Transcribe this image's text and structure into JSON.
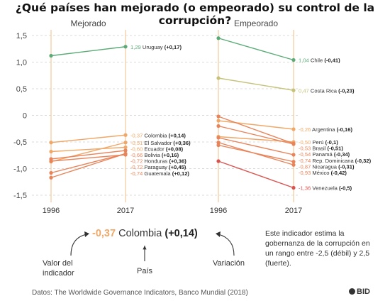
{
  "title": "¿Qué países han mejorado (o empeorado) su control de la corrupción?",
  "chart_data": {
    "type": "line",
    "x": [
      "1996",
      "2017"
    ],
    "ylim": [
      -1.5,
      1.5
    ],
    "yticks": [
      "1,5",
      "1,0",
      "0,5",
      "0",
      "-0,5",
      "-1,0",
      "-1,5"
    ],
    "grid": false,
    "panels": [
      {
        "title": "Mejorado",
        "series": [
          {
            "name": "Uruguay",
            "values": [
              1.12,
              1.29
            ],
            "label_value": "1,29",
            "label_change": "(+0,17)",
            "color": "#5aab77"
          },
          {
            "name": "Colombia",
            "values": [
              -0.51,
              -0.37
            ],
            "label_value": "-0,37",
            "label_change": "(+0,14)",
            "color": "#f0a868"
          },
          {
            "name": "El Salvador",
            "values": [
              -0.87,
              -0.51
            ],
            "label_value": "-0,51",
            "label_change": "(+0,36)",
            "color": "#f0a868"
          },
          {
            "name": "Ecuador",
            "values": [
              -0.68,
              -0.6
            ],
            "label_value": "-0,60",
            "label_change": "(+0,08)",
            "color": "#f0a868"
          },
          {
            "name": "Bolivia",
            "values": [
              -0.82,
              -0.66
            ],
            "label_value": "-0,66",
            "label_change": "(+0,16)",
            "color": "#e8845a"
          },
          {
            "name": "Honduras",
            "values": [
              -1.08,
              -0.72
            ],
            "label_value": "-0,72",
            "label_change": "(+0,36)",
            "color": "#e8845a"
          },
          {
            "name": "Paraguay",
            "values": [
              -1.17,
              -0.72
            ],
            "label_value": "-0,72",
            "label_change": "(+0,45)",
            "color": "#e8845a"
          },
          {
            "name": "Guatemala",
            "values": [
              -0.86,
              -0.74
            ],
            "label_value": "-0,74",
            "label_change": "(+0,12)",
            "color": "#e8845a"
          }
        ]
      },
      {
        "title": "Empeorado",
        "series": [
          {
            "name": "Chile",
            "values": [
              1.45,
              1.04
            ],
            "label_value": "1,04",
            "label_change": "(-0,41)",
            "color": "#5aab77"
          },
          {
            "name": "Costa Rica",
            "values": [
              0.7,
              0.47
            ],
            "label_value": "0,47",
            "label_change": "(-0,23)",
            "color": "#c5c27a"
          },
          {
            "name": "Argentina",
            "values": [
              -0.1,
              -0.26
            ],
            "label_value": "-0,26",
            "label_change": "(-0,16)",
            "color": "#f0a868"
          },
          {
            "name": "Perú",
            "values": [
              -0.4,
              -0.5
            ],
            "label_value": "-0,50",
            "label_change": "(-0,1)",
            "color": "#f0a868"
          },
          {
            "name": "Brasil",
            "values": [
              -0.02,
              -0.53
            ],
            "label_value": "-0,53",
            "label_change": "(-0,51)",
            "color": "#e8845a"
          },
          {
            "name": "Panamá",
            "values": [
              -0.2,
              -0.54
            ],
            "label_value": "-0,54",
            "label_change": "(-0,34)",
            "color": "#e8845a"
          },
          {
            "name": "Rep. Dominicana",
            "values": [
              -0.42,
              -0.74
            ],
            "label_value": "-0,74",
            "label_change": "(-0,32)",
            "color": "#e8845a"
          },
          {
            "name": "Nicaragua",
            "values": [
              -0.56,
              -0.87
            ],
            "label_value": "-0,87",
            "label_change": "(-0,31)",
            "color": "#e8845a"
          },
          {
            "name": "México",
            "values": [
              -0.51,
              -0.93
            ],
            "label_value": "-0,93",
            "label_change": "(-0,42)",
            "color": "#e8845a"
          },
          {
            "name": "Venezuela",
            "values": [
              -0.86,
              -1.36
            ],
            "label_value": "-1,36",
            "label_change": "(-0,5)",
            "color": "#d9534f"
          }
        ]
      }
    ]
  },
  "key": {
    "value": "-0,37",
    "country": "Colombia",
    "change": "(+0,14)",
    "caption_value": "Valor del indicador",
    "caption_country": "País",
    "caption_change": "Variación"
  },
  "note": "Este indicador estima la gobernanza de la corrupción en un rango entre -2,5 (débil) y 2,5 (fuerte).",
  "source": "Datos: The Worldwide Governance Indicators, Banco Mundial (2018)",
  "logo_text": "BID"
}
